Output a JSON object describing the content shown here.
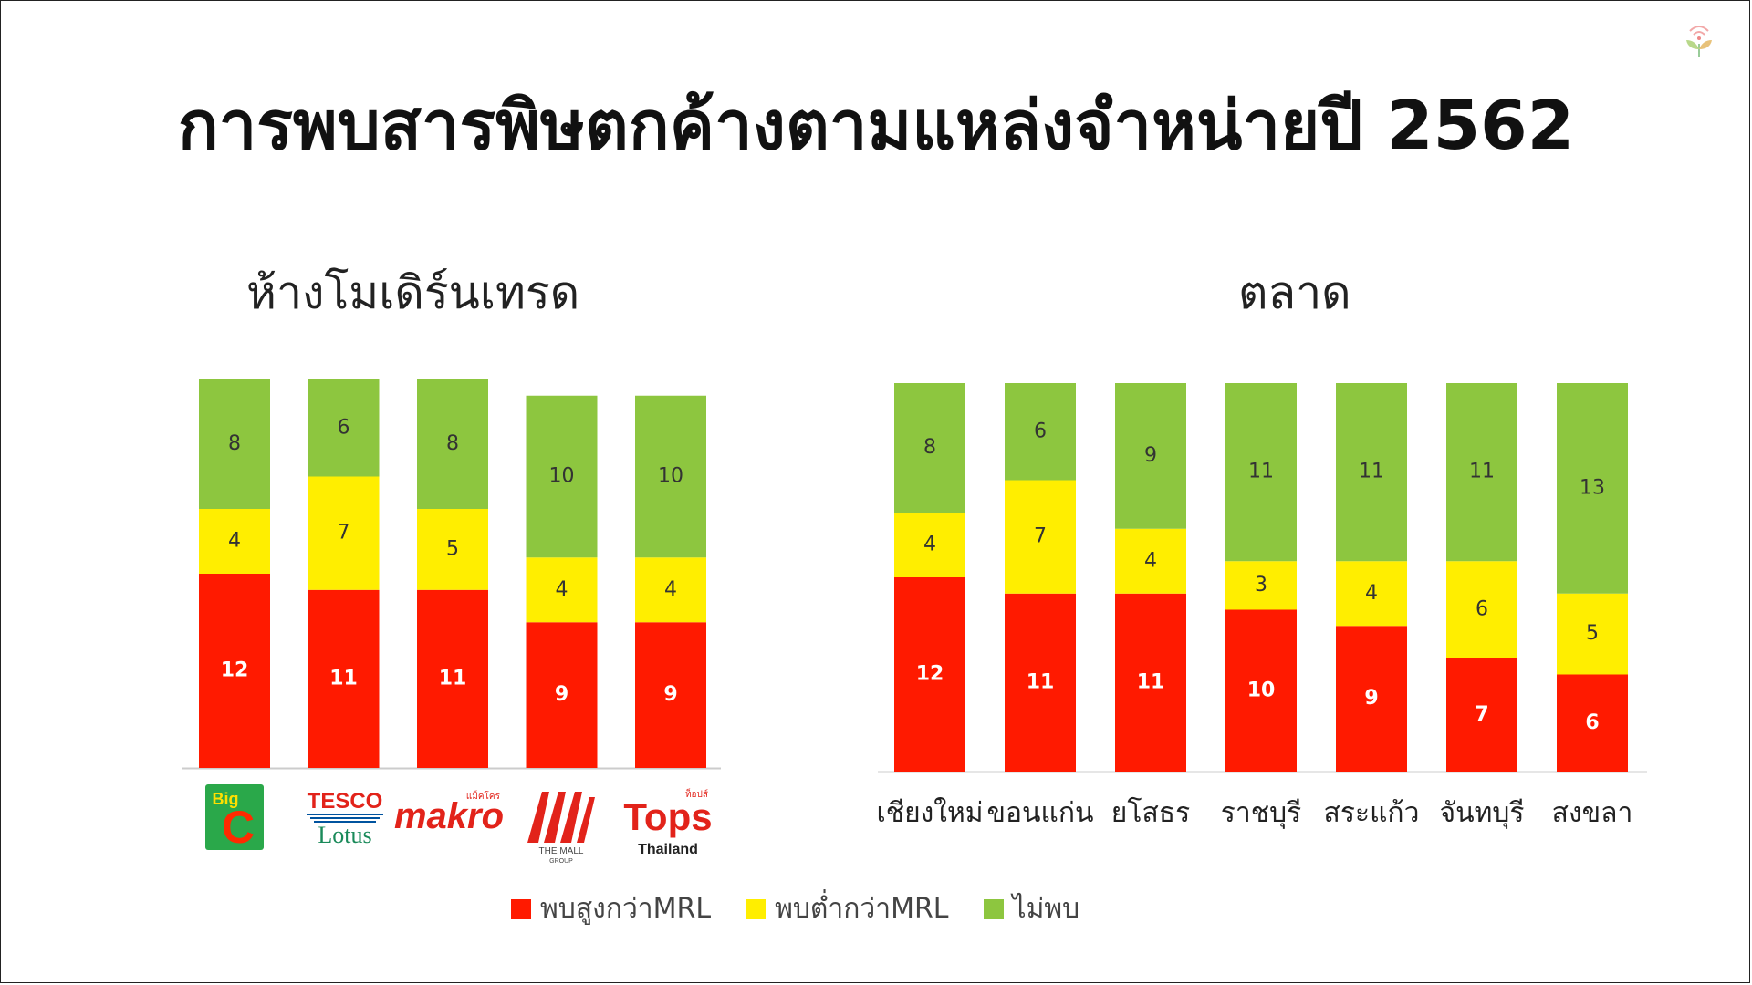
{
  "title": "การพบสารพิษตกค้างตามแหล่งจำหน่ายปี 2562",
  "colors": {
    "high": "#ff1a00",
    "low": "#ffee00",
    "none": "#8dc63f",
    "axis": "#cccccc"
  },
  "legend": [
    {
      "key": "high",
      "label": "พบสูงกว่าMRL"
    },
    {
      "key": "low",
      "label": "พบต่ำกว่าMRL"
    },
    {
      "key": "none",
      "label": "ไม่พบ"
    }
  ],
  "logos": {
    "bigc": {
      "line1": "Big",
      "line2": "C"
    },
    "tesco": {
      "line1": "TESCO",
      "line2": "Lotus"
    },
    "makro": {
      "text": "makro",
      "small": "แม็คโคร"
    },
    "mall": {
      "line1": "THE MALL",
      "line2": "GROUP"
    },
    "tops": {
      "small": "ท็อปส์",
      "line1": "Tops",
      "line2": "Thailand"
    }
  },
  "chart_data": [
    {
      "type": "bar",
      "stacked": true,
      "title": "ห้างโมเดิร์นเทรด",
      "categories": [
        "Big C",
        "Tesco Lotus",
        "makro",
        "The Mall Group",
        "Tops Thailand"
      ],
      "series": [
        {
          "name": "พบสูงกว่าMRL",
          "values": [
            12,
            11,
            11,
            9,
            9
          ]
        },
        {
          "name": "พบต่ำกว่าMRL",
          "values": [
            4,
            7,
            5,
            4,
            4
          ]
        },
        {
          "name": "ไม่พบ",
          "values": [
            8,
            6,
            8,
            10,
            10
          ]
        }
      ]
    },
    {
      "type": "bar",
      "stacked": true,
      "title": "ตลาด",
      "categories": [
        "เชียงใหม่",
        "ขอนแก่น",
        "ยโสธร",
        "ราชบุรี",
        "สระแก้ว",
        "จันทบุรี",
        "สงขลา"
      ],
      "series": [
        {
          "name": "พบสูงกว่าMRL",
          "values": [
            12,
            11,
            11,
            10,
            9,
            7,
            6
          ]
        },
        {
          "name": "พบต่ำกว่าMRL",
          "values": [
            4,
            7,
            4,
            3,
            4,
            6,
            5
          ]
        },
        {
          "name": "ไม่พบ",
          "values": [
            8,
            6,
            9,
            11,
            11,
            11,
            13
          ]
        }
      ]
    }
  ]
}
